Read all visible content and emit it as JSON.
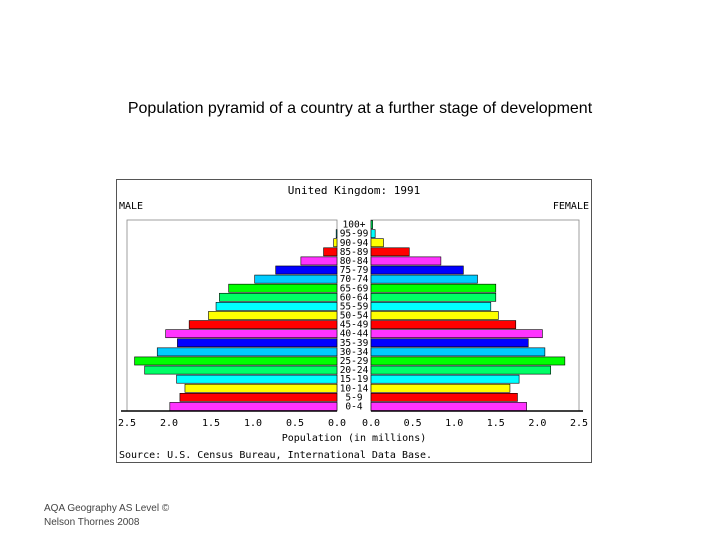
{
  "slide": {
    "title": "Population pyramid of a country at a further stage of development",
    "footer_line1": "AQA Geography AS Level  ©",
    "footer_line2": "Nelson Thornes 2008"
  },
  "chart_data": {
    "type": "bar",
    "orientation": "population-pyramid",
    "title": "United Kingdom: 1991",
    "left_label": "MALE",
    "right_label": "FEMALE",
    "xlabel": "Population (in millions)",
    "source": "Source: U.S. Census Bureau, International Data Base.",
    "xlim": [
      0,
      2.5
    ],
    "x_ticks_left": [
      "2.5",
      "2.0",
      "1.5",
      "1.0",
      "0.5",
      "0.0"
    ],
    "x_ticks_right": [
      "0.0",
      "0.5",
      "1.0",
      "1.5",
      "2.0",
      "2.5"
    ],
    "categories": [
      "100+",
      "95-99",
      "90-94",
      "85-89",
      "80-84",
      "75-79",
      "70-74",
      "65-69",
      "60-64",
      "55-59",
      "50-54",
      "45-49",
      "40-44",
      "35-39",
      "30-34",
      "25-29",
      "20-24",
      "15-19",
      "10-14",
      "5-9",
      "0-4"
    ],
    "series": [
      {
        "name": "MALE",
        "values": [
          0.0,
          0.01,
          0.04,
          0.16,
          0.43,
          0.73,
          0.98,
          1.29,
          1.4,
          1.44,
          1.53,
          1.76,
          2.04,
          1.9,
          2.14,
          2.41,
          2.29,
          1.91,
          1.81,
          1.87,
          1.99
        ]
      },
      {
        "name": "FEMALE",
        "values": [
          0.02,
          0.05,
          0.15,
          0.46,
          0.84,
          1.11,
          1.28,
          1.5,
          1.5,
          1.44,
          1.53,
          1.74,
          2.06,
          1.89,
          2.09,
          2.33,
          2.16,
          1.78,
          1.67,
          1.76,
          1.87
        ]
      }
    ],
    "colors": [
      "#00ff66",
      "#00ffff",
      "#ffff00",
      "#ff0000",
      "#ff33ff",
      "#0000ff",
      "#00ccff",
      "#00ff00"
    ],
    "grid": false,
    "legend": "none"
  }
}
